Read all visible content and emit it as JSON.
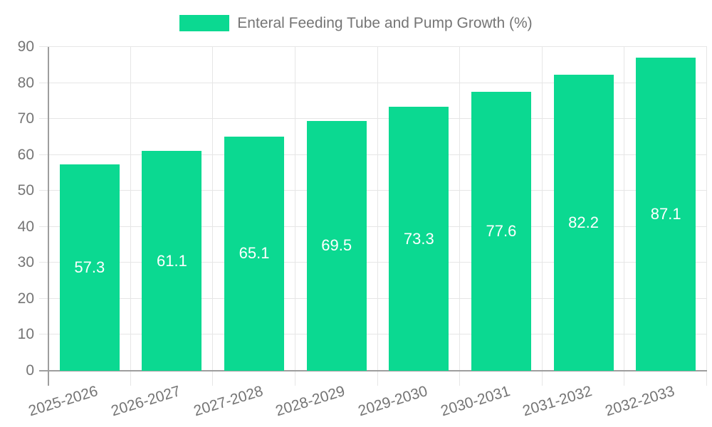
{
  "chart_data": {
    "type": "bar",
    "title": "Enteral Feeding Tube and Pump Growth (%)",
    "categories": [
      "2025-2026",
      "2026-2027",
      "2027-2028",
      "2028-2029",
      "2029-2030",
      "2030-2031",
      "2031-2032",
      "2032-2033"
    ],
    "values": [
      57.3,
      61.1,
      65.1,
      69.5,
      73.3,
      77.6,
      82.2,
      87.1
    ],
    "value_labels": [
      "57.3",
      "61.1",
      "65.1",
      "69.5",
      "73.3",
      "77.6",
      "82.2",
      "87.1"
    ],
    "xlabel": "",
    "ylabel": "",
    "ylim": [
      0,
      90
    ],
    "ytick_step": 10,
    "yticks": [
      "0",
      "10",
      "20",
      "30",
      "40",
      "50",
      "60",
      "70",
      "80",
      "90"
    ],
    "grid": true,
    "legend_position": "top",
    "bar_color": "#0bd991",
    "value_label_color": "#ffffff",
    "grid_color": "#e6e6e6",
    "axis_color": "#9e9e9e",
    "text_color": "#757575"
  }
}
